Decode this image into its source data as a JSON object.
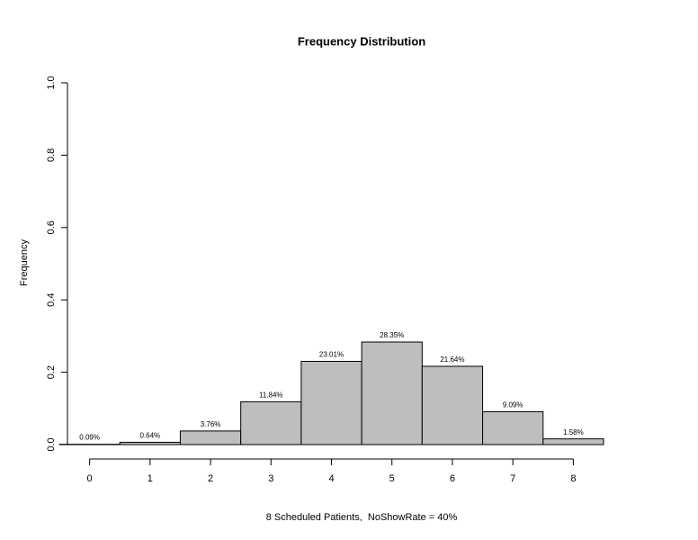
{
  "chart_data": {
    "type": "bar",
    "title": "Frequency Distribution",
    "x_label": "8 Scheduled Patients,  NoShowRate = 40%",
    "y_label": "Frequency",
    "x": [
      0,
      1,
      2,
      3,
      4,
      5,
      6,
      7,
      8
    ],
    "values": [
      0.0009,
      0.0064,
      0.0376,
      0.1184,
      0.2301,
      0.2835,
      0.2164,
      0.0909,
      0.0158
    ],
    "value_labels": [
      "0.09%",
      "0.64%",
      "3.76%",
      "11.84%",
      "23.01%",
      "28.35%",
      "21.64%",
      "9.09%",
      "1.58%"
    ],
    "color": "#bebebe",
    "xlim": [
      -0.5,
      8.5
    ],
    "xticks": [
      0,
      1,
      2,
      3,
      4,
      5,
      6,
      7,
      8
    ],
    "ylim": [
      0,
      1
    ],
    "yticks": [
      {
        "value": 0,
        "label": "0.0"
      },
      0.2,
      0.4,
      0.6,
      0.8,
      {
        "value": 1,
        "label": "1.0"
      }
    ]
  }
}
